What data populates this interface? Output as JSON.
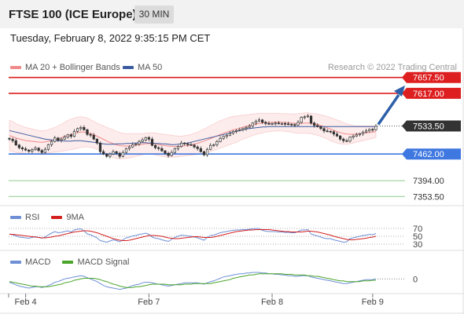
{
  "header": {
    "title": "FTSE 100 (ICE Europe)",
    "interval": "30 MIN"
  },
  "datetime": "Tuesday, February 8, 2022 9:35:15 PM CET",
  "legend": {
    "bollinger": "MA 20 + Bollinger Bands",
    "ma50": "MA 50"
  },
  "credit": "Research © 2022 Trading Central",
  "rsi_legend": {
    "rsi": "RSI",
    "ma": "9MA"
  },
  "macd_legend": {
    "macd": "MACD",
    "signal": "MACD Signal"
  },
  "colors": {
    "resistance": "#dd1f1f",
    "support": "#3f78e0",
    "target": "#8ccb8c",
    "bollinger": "#f08a8a",
    "ma50": "#3b5ba0",
    "rsi": "#6e8fd6",
    "rsi_ma": "#d42020",
    "macd": "#6e8fd6",
    "macd_signal": "#4aa52a",
    "arrow": "#2c5fa8",
    "candle": "#333333",
    "current_tag": "#333333"
  },
  "chart_data": [
    {
      "type": "candlestick",
      "title": "FTSE 100 (ICE Europe)",
      "x_ticks": [
        "Feb 4",
        "Feb 7",
        "Feb 8",
        "Feb 9"
      ],
      "ylim": [
        7330,
        7675
      ],
      "current_price": 7533.5,
      "current_label": "7533.50",
      "levels": [
        {
          "value": 7657.5,
          "label": "7657.50",
          "kind": "resistance"
        },
        {
          "value": 7617.0,
          "label": "7617.00",
          "kind": "resistance"
        },
        {
          "value": 7462.0,
          "label": "7462.00",
          "kind": "support"
        },
        {
          "value": 7394.0,
          "label": "7394.00",
          "kind": "target"
        },
        {
          "value": 7353.5,
          "label": "7353.50",
          "kind": "target"
        }
      ],
      "close": [
        7500,
        7496,
        7485,
        7478,
        7475,
        7472,
        7469,
        7473,
        7477,
        7471,
        7466,
        7474,
        7486,
        7494,
        7503,
        7497,
        7500,
        7505,
        7511,
        7507,
        7520,
        7527,
        7530,
        7524,
        7512,
        7510,
        7500,
        7490,
        7468,
        7462,
        7456,
        7462,
        7468,
        7464,
        7456,
        7466,
        7476,
        7480,
        7486,
        7488,
        7494,
        7498,
        7504,
        7500,
        7484,
        7478,
        7476,
        7470,
        7464,
        7458,
        7466,
        7476,
        7481,
        7490,
        7488,
        7486,
        7485,
        7480,
        7476,
        7468,
        7460,
        7474,
        7484,
        7486,
        7494,
        7502,
        7507,
        7510,
        7515,
        7520,
        7522,
        7524,
        7527,
        7530,
        7533,
        7541,
        7546,
        7549,
        7543,
        7540,
        7539,
        7540,
        7541,
        7540,
        7540,
        7539,
        7538,
        7537,
        7536,
        7543,
        7556,
        7557,
        7559,
        7541,
        7535,
        7532,
        7527,
        7521,
        7520,
        7519,
        7513,
        7508,
        7500,
        7496,
        7495,
        7505,
        7508,
        7511,
        7514,
        7518,
        7521,
        7525,
        7524,
        7533
      ],
      "ma50": [
        7522,
        7520,
        7518,
        7516,
        7514,
        7512,
        7510,
        7508,
        7506,
        7504,
        7502,
        7500,
        7499,
        7498,
        7497,
        7496,
        7496,
        7495,
        7495,
        7495,
        7496,
        7496,
        7496,
        7495,
        7494,
        7493,
        7492,
        7491,
        7489,
        7488,
        7487,
        7487,
        7487,
        7488,
        7488,
        7488,
        7489,
        7489,
        7490,
        7490,
        7491,
        7491,
        7491,
        7490,
        7490,
        7489,
        7489,
        7488,
        7488,
        7487,
        7486,
        7486,
        7487,
        7488,
        7489,
        7490,
        7492,
        7494,
        7496,
        7498,
        7500,
        7502,
        7504,
        7506,
        7508,
        7510,
        7512,
        7514,
        7516,
        7518,
        7520,
        7522,
        7524,
        7526,
        7527,
        7528,
        7529,
        7530,
        7531,
        7531,
        7532,
        7532,
        7532,
        7532,
        7532,
        7532,
        7532,
        7532,
        7532,
        7532,
        7532,
        7532,
        7532,
        7532,
        7532,
        7532,
        7532,
        7532,
        7532,
        7532,
        7532,
        7532,
        7532,
        7532,
        7532,
        7532,
        7532,
        7532,
        7532,
        7532,
        7532,
        7532,
        7532,
        7532
      ],
      "bollinger_upper": [
        7548,
        7545,
        7540,
        7536,
        7533,
        7530,
        7528,
        7526,
        7524,
        7522,
        7521,
        7522,
        7524,
        7527,
        7530,
        7534,
        7538,
        7543,
        7548,
        7551,
        7554,
        7556,
        7557,
        7556,
        7554,
        7550,
        7546,
        7541,
        7537,
        7534,
        7530,
        7527,
        7524,
        7520,
        7517,
        7515,
        7514,
        7514,
        7514,
        7514,
        7514,
        7514,
        7515,
        7516,
        7516,
        7516,
        7514,
        7513,
        7512,
        7511,
        7510,
        7509,
        7508,
        7508,
        7509,
        7510,
        7512,
        7515,
        7518,
        7522,
        7526,
        7530,
        7535,
        7539,
        7543,
        7547,
        7550,
        7553,
        7556,
        7558,
        7559,
        7560,
        7561,
        7562,
        7563,
        7564,
        7565,
        7566,
        7566,
        7566,
        7566,
        7566,
        7566,
        7566,
        7565,
        7565,
        7565,
        7564,
        7564,
        7565,
        7566,
        7567,
        7567,
        7566,
        7565,
        7564,
        7562,
        7560,
        7558,
        7555,
        7552,
        7549,
        7546,
        7542,
        7539,
        7537,
        7535,
        7534,
        7534,
        7534,
        7534,
        7534,
        7534,
        7534
      ],
      "bollinger_lower": [
        7470,
        7468,
        7466,
        7465,
        7464,
        7463,
        7463,
        7463,
        7463,
        7463,
        7463,
        7464,
        7465,
        7466,
        7467,
        7468,
        7469,
        7470,
        7472,
        7473,
        7475,
        7477,
        7479,
        7480,
        7480,
        7479,
        7477,
        7474,
        7470,
        7465,
        7460,
        7456,
        7453,
        7451,
        7450,
        7450,
        7451,
        7452,
        7454,
        7456,
        7458,
        7460,
        7462,
        7462,
        7461,
        7460,
        7458,
        7456,
        7455,
        7454,
        7454,
        7454,
        7455,
        7456,
        7457,
        7458,
        7459,
        7460,
        7461,
        7462,
        7464,
        7466,
        7468,
        7471,
        7474,
        7477,
        7480,
        7483,
        7486,
        7489,
        7492,
        7496,
        7500,
        7503,
        7506,
        7509,
        7512,
        7514,
        7516,
        7518,
        7519,
        7520,
        7521,
        7521,
        7521,
        7520,
        7519,
        7518,
        7516,
        7515,
        7515,
        7515,
        7515,
        7514,
        7512,
        7510,
        7507,
        7504,
        7500,
        7496,
        7493,
        7490,
        7488,
        7487,
        7487,
        7488,
        7490,
        7492,
        7494,
        7496,
        7498,
        7500,
        7502,
        7504
      ]
    },
    {
      "type": "line",
      "title": "RSI",
      "ylim": [
        20,
        80
      ],
      "y_ticks": [
        {
          "value": 70,
          "label": "70"
        },
        {
          "value": 50,
          "label": "50"
        },
        {
          "value": 30,
          "label": "30"
        }
      ],
      "series": [
        {
          "name": "RSI",
          "values": [
            56,
            54,
            51,
            48,
            47,
            46,
            45,
            47,
            49,
            47,
            45,
            48,
            54,
            58,
            62,
            59,
            60,
            62,
            64,
            61,
            66,
            68,
            69,
            64,
            56,
            54,
            50,
            46,
            39,
            37,
            35,
            38,
            41,
            39,
            36,
            41,
            46,
            48,
            51,
            52,
            55,
            56,
            58,
            55,
            48,
            45,
            44,
            41,
            39,
            37,
            42,
            47,
            50,
            53,
            52,
            51,
            50,
            48,
            46,
            43,
            40,
            47,
            52,
            53,
            56,
            59,
            61,
            62,
            64,
            65,
            66,
            66,
            67,
            67,
            68,
            69,
            70,
            70,
            65,
            63,
            62,
            62,
            62,
            61,
            61,
            60,
            60,
            59,
            59,
            62,
            66,
            66,
            67,
            56,
            53,
            51,
            48,
            45,
            44,
            44,
            41,
            39,
            37,
            35,
            36,
            44,
            46,
            48,
            50,
            52,
            53,
            55,
            54,
            57
          ]
        },
        {
          "name": "9MA",
          "values": [
            55,
            55,
            54,
            53,
            52,
            51,
            50,
            49,
            48,
            47,
            46,
            46,
            47,
            48,
            50,
            51,
            53,
            55,
            57,
            59,
            61,
            62,
            63,
            64,
            64,
            63,
            61,
            59,
            56,
            53,
            50,
            47,
            44,
            42,
            40,
            39,
            39,
            40,
            42,
            44,
            46,
            48,
            50,
            52,
            52,
            52,
            51,
            50,
            48,
            46,
            45,
            44,
            44,
            45,
            46,
            47,
            48,
            49,
            49,
            48,
            47,
            47,
            47,
            48,
            50,
            52,
            54,
            56,
            58,
            60,
            62,
            63,
            64,
            65,
            66,
            66,
            67,
            67,
            67,
            67,
            67,
            66,
            65,
            64,
            63,
            62,
            62,
            61,
            61,
            61,
            61,
            62,
            63,
            63,
            62,
            61,
            59,
            57,
            55,
            53,
            50,
            48,
            46,
            44,
            42,
            41,
            41,
            42,
            43,
            44,
            45,
            47,
            48,
            50
          ]
        }
      ]
    },
    {
      "type": "line",
      "title": "MACD",
      "ylim": [
        -20,
        16
      ],
      "y_ticks": [
        {
          "value": 0,
          "label": "0"
        }
      ],
      "series": [
        {
          "name": "MACD",
          "values": [
            -5,
            -7,
            -9,
            -11,
            -12,
            -13,
            -14,
            -13,
            -12,
            -12,
            -13,
            -12,
            -10,
            -8,
            -5,
            -4,
            -2,
            0,
            1,
            2,
            3,
            4,
            5,
            4,
            2,
            0,
            -2,
            -4,
            -7,
            -10,
            -12,
            -13,
            -14,
            -15,
            -16,
            -15,
            -14,
            -12,
            -10,
            -9,
            -8,
            -6,
            -5,
            -5,
            -6,
            -7,
            -8,
            -9,
            -10,
            -11,
            -10,
            -9,
            -8,
            -7,
            -6,
            -6,
            -6,
            -6,
            -6,
            -7,
            -8,
            -6,
            -4,
            -3,
            -1,
            1,
            3,
            4,
            5,
            6,
            7,
            8,
            8,
            9,
            9,
            10,
            10,
            10,
            9,
            9,
            8,
            8,
            7,
            7,
            6,
            6,
            5,
            5,
            4,
            4,
            5,
            5,
            5,
            3,
            2,
            1,
            0,
            -1,
            -2,
            -3,
            -4,
            -5,
            -6,
            -7,
            -7,
            -6,
            -5,
            -4,
            -3,
            -2,
            -1,
            -1,
            -1,
            0
          ]
        },
        {
          "name": "MACD Signal",
          "values": [
            -4,
            -5,
            -6,
            -7,
            -8,
            -9,
            -10,
            -11,
            -11,
            -12,
            -12,
            -12,
            -12,
            -11,
            -10,
            -9,
            -8,
            -6,
            -5,
            -4,
            -2,
            -1,
            0,
            1,
            1,
            1,
            1,
            0,
            -1,
            -3,
            -4,
            -6,
            -8,
            -9,
            -11,
            -12,
            -13,
            -13,
            -13,
            -12,
            -12,
            -11,
            -10,
            -9,
            -8,
            -8,
            -8,
            -8,
            -8,
            -9,
            -9,
            -9,
            -9,
            -9,
            -8,
            -8,
            -8,
            -7,
            -7,
            -7,
            -7,
            -7,
            -7,
            -6,
            -5,
            -4,
            -3,
            -2,
            -1,
            1,
            2,
            3,
            4,
            5,
            6,
            6,
            7,
            8,
            8,
            8,
            8,
            8,
            8,
            8,
            8,
            7,
            7,
            7,
            6,
            6,
            6,
            6,
            5,
            5,
            4,
            4,
            3,
            2,
            1,
            0,
            -1,
            -2,
            -3,
            -3,
            -4,
            -4,
            -4,
            -4,
            -4,
            -3,
            -3,
            -3,
            -2,
            -2
          ]
        }
      ]
    }
  ]
}
